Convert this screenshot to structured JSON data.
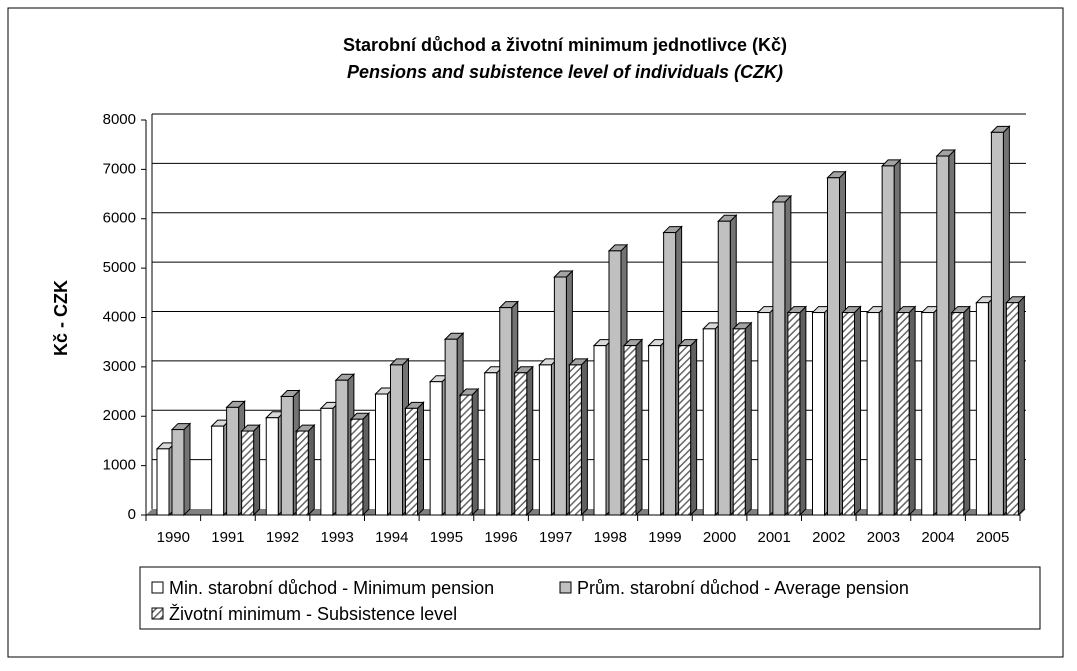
{
  "chart_data": {
    "type": "bar3d",
    "title": "Starobní důchod a životní minimum jednotlivce (Kč)",
    "subtitle": "Pensions and subistence level of individuals (CZK)",
    "y_label": "Kč - CZK",
    "categories": [
      "1990",
      "1991",
      "1992",
      "1993",
      "1994",
      "1995",
      "1996",
      "1997",
      "1998",
      "1999",
      "2000",
      "2001",
      "2002",
      "2003",
      "2004",
      "2005"
    ],
    "series": [
      {
        "name": "Min. starobní důchod - Minimum pension",
        "color": "#ffffff",
        "hatch": false,
        "values": [
          1340,
          1800,
          1970,
          2160,
          2450,
          2700,
          2880,
          3040,
          3430,
          3430,
          3770,
          4100,
          4100,
          4100,
          4100,
          4300
        ]
      },
      {
        "name": "Prům. starobní důchod - Average pension",
        "color": "#c0c0c0",
        "hatch": false,
        "values": [
          1730,
          2180,
          2400,
          2730,
          3040,
          3560,
          4200,
          4820,
          5350,
          5720,
          5950,
          6340,
          6830,
          7070,
          7270,
          7750
        ]
      },
      {
        "name": "Životní minimum - Subsistence level",
        "color": "#808080",
        "hatch": true,
        "values": [
          null,
          1700,
          1700,
          1940,
          2160,
          2430,
          2880,
          3040,
          3430,
          3430,
          3770,
          4100,
          4100,
          4100,
          4100,
          4300
        ]
      }
    ],
    "ylim": [
      0,
      8000
    ],
    "yticks": [
      0,
      1000,
      2000,
      3000,
      4000,
      5000,
      6000,
      7000,
      8000
    ],
    "grid": true
  }
}
